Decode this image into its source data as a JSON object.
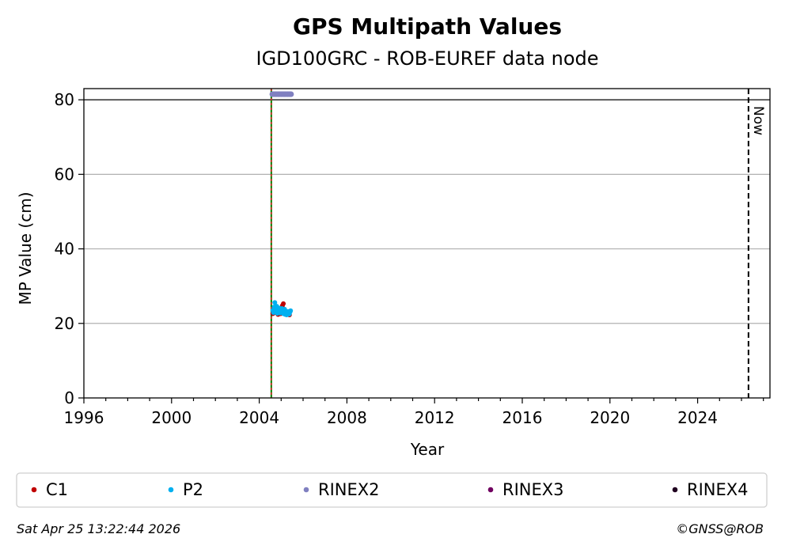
{
  "chart_data": {
    "type": "scatter",
    "title": "GPS Multipath Values",
    "subtitle": "IGD100GRC - ROB-EUREF data node",
    "xlabel": "Year",
    "ylabel": "MP Value (cm)",
    "xlim": [
      1996.0,
      2027.3
    ],
    "ylim": [
      0,
      83
    ],
    "xticks": [
      1996,
      2000,
      2004,
      2008,
      2012,
      2016,
      2020,
      2024
    ],
    "xtick_labels": [
      "1996",
      "2000",
      "2004",
      "2008",
      "2012",
      "2016",
      "2020",
      "2024"
    ],
    "yticks": [
      0,
      20,
      40,
      60,
      80
    ],
    "ytick_labels": [
      "0",
      "20",
      "40",
      "60",
      "80"
    ],
    "grid": "horizontal",
    "reference_line_y": 80,
    "vertical_markers": [
      {
        "x": 2004.55,
        "style": "solid",
        "color": "#008000"
      },
      {
        "x": 2004.55,
        "style": "dotted",
        "color": "#d62728"
      }
    ],
    "now_marker": {
      "x": 2026.32,
      "label": "Now"
    },
    "series": [
      {
        "name": "C1",
        "color": "#c00000",
        "points": [
          [
            2004.62,
            22.6
          ],
          [
            2004.66,
            23.4
          ],
          [
            2004.7,
            23.0
          ],
          [
            2004.74,
            24.1
          ],
          [
            2004.78,
            22.8
          ],
          [
            2004.82,
            23.3
          ],
          [
            2004.86,
            22.4
          ],
          [
            2004.9,
            23.7
          ],
          [
            2004.94,
            23.1
          ],
          [
            2004.98,
            22.6
          ],
          [
            2005.02,
            23.0
          ],
          [
            2005.06,
            24.8
          ],
          [
            2005.1,
            25.3
          ],
          [
            2005.14,
            23.6
          ],
          [
            2005.18,
            22.9
          ],
          [
            2005.22,
            23.2
          ],
          [
            2005.26,
            22.5
          ],
          [
            2005.3,
            22.8
          ],
          [
            2005.34,
            23.0
          ],
          [
            2005.38,
            22.3
          ]
        ]
      },
      {
        "name": "P2",
        "color": "#00b0f0",
        "points": [
          [
            2004.62,
            23.5
          ],
          [
            2004.65,
            22.9
          ],
          [
            2004.68,
            24.4
          ],
          [
            2004.71,
            25.6
          ],
          [
            2004.74,
            23.8
          ],
          [
            2004.77,
            23.2
          ],
          [
            2004.8,
            24.6
          ],
          [
            2004.83,
            22.7
          ],
          [
            2004.86,
            23.9
          ],
          [
            2004.89,
            23.4
          ],
          [
            2004.92,
            24.1
          ],
          [
            2004.95,
            22.8
          ],
          [
            2004.98,
            23.6
          ],
          [
            2005.01,
            23.3
          ],
          [
            2005.04,
            24.0
          ],
          [
            2005.07,
            23.5
          ],
          [
            2005.1,
            22.6
          ],
          [
            2005.13,
            23.1
          ],
          [
            2005.16,
            23.8
          ],
          [
            2005.19,
            22.4
          ],
          [
            2005.22,
            23.0
          ],
          [
            2005.25,
            22.3
          ],
          [
            2005.28,
            22.7
          ],
          [
            2005.31,
            23.2
          ],
          [
            2005.34,
            22.9
          ],
          [
            2005.37,
            22.5
          ],
          [
            2005.4,
            23.0
          ],
          [
            2005.43,
            23.4
          ]
        ]
      },
      {
        "name": "RINEX2",
        "color": "#8080c0",
        "points": [
          [
            2004.6,
            81.5
          ],
          [
            2004.65,
            81.5
          ],
          [
            2004.7,
            81.5
          ],
          [
            2004.75,
            81.5
          ],
          [
            2004.8,
            81.5
          ],
          [
            2004.85,
            81.5
          ],
          [
            2004.9,
            81.5
          ],
          [
            2004.95,
            81.5
          ],
          [
            2005.0,
            81.5
          ],
          [
            2005.05,
            81.5
          ],
          [
            2005.1,
            81.5
          ],
          [
            2005.15,
            81.5
          ],
          [
            2005.2,
            81.5
          ],
          [
            2005.25,
            81.5
          ],
          [
            2005.3,
            81.5
          ],
          [
            2005.35,
            81.5
          ],
          [
            2005.4,
            81.5
          ],
          [
            2005.45,
            81.5
          ]
        ]
      },
      {
        "name": "RINEX3",
        "color": "#700060",
        "points": []
      },
      {
        "name": "RINEX4",
        "color": "#200020",
        "points": []
      }
    ],
    "legend_placement": "below"
  },
  "footer": {
    "timestamp": "Sat Apr 25 13:22:44 2026",
    "credit": "©GNSS@ROB"
  }
}
